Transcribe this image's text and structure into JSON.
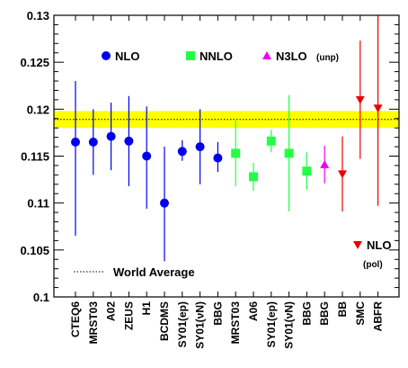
{
  "chart_data": {
    "type": "scatter",
    "ylim": [
      0.1,
      0.13
    ],
    "yticks": [
      "0.1",
      "0.105",
      "0.11",
      "0.115",
      "0.12",
      "0.125",
      "0.13"
    ],
    "categories": [
      "CTEQ6",
      "MRST03",
      "A02",
      "ZEUS",
      "H1",
      "BCDMS",
      "SY01(ep)",
      "SY01(νN)",
      "BBG",
      "MRST03",
      "A06",
      "SY01(ep)",
      "SY01(νN)",
      "BBG",
      "BBG",
      "BB",
      "SMC",
      "ABFR"
    ],
    "world_average": {
      "value": 0.1189,
      "band": [
        0.118,
        0.1198
      ],
      "label": "World Average",
      "band_color": "#ffff00"
    },
    "series": [
      {
        "name": "NLO",
        "marker": "circle",
        "color": "#0000ee",
        "indices": [
          0,
          1,
          2,
          3,
          4,
          5,
          6,
          7,
          8
        ],
        "values": [
          0.1165,
          0.1165,
          0.1171,
          0.1166,
          0.115,
          0.11,
          0.1155,
          0.116,
          0.1148
        ],
        "errors_low": [
          0.01,
          0.0035,
          0.0036,
          0.0048,
          0.0056,
          0.0062,
          0.001,
          0.004,
          0.0015
        ],
        "errors_high": [
          0.0065,
          0.0035,
          0.0036,
          0.0048,
          0.0053,
          0.006,
          0.0012,
          0.004,
          0.0017
        ]
      },
      {
        "name": "NNLO",
        "marker": "square",
        "color": "#22ff44",
        "indices": [
          9,
          10,
          11,
          12,
          13
        ],
        "values": [
          0.1153,
          0.1128,
          0.1166,
          0.1153,
          0.1134
        ],
        "errors_low": [
          0.0035,
          0.0015,
          0.0012,
          0.0062,
          0.002
        ],
        "errors_high": [
          0.0035,
          0.0015,
          0.0012,
          0.0062,
          0.002
        ]
      },
      {
        "name": "N3LO",
        "marker": "triangle-up",
        "color": "#ee00ee",
        "note": "(unp)",
        "indices": [
          14
        ],
        "values": [
          0.1141
        ],
        "errors_low": [
          0.002
        ],
        "errors_high": [
          0.002
        ]
      },
      {
        "name": "NLO",
        "marker": "triangle-down",
        "color": "#ee0000",
        "note": "(pol)",
        "indices": [
          15,
          16,
          17
        ],
        "values": [
          0.1131,
          0.121,
          0.1201
        ],
        "errors_low": [
          0.004,
          0.0063,
          0.0104
        ],
        "errors_high": [
          0.004,
          0.0063,
          0.0104
        ]
      }
    ]
  }
}
